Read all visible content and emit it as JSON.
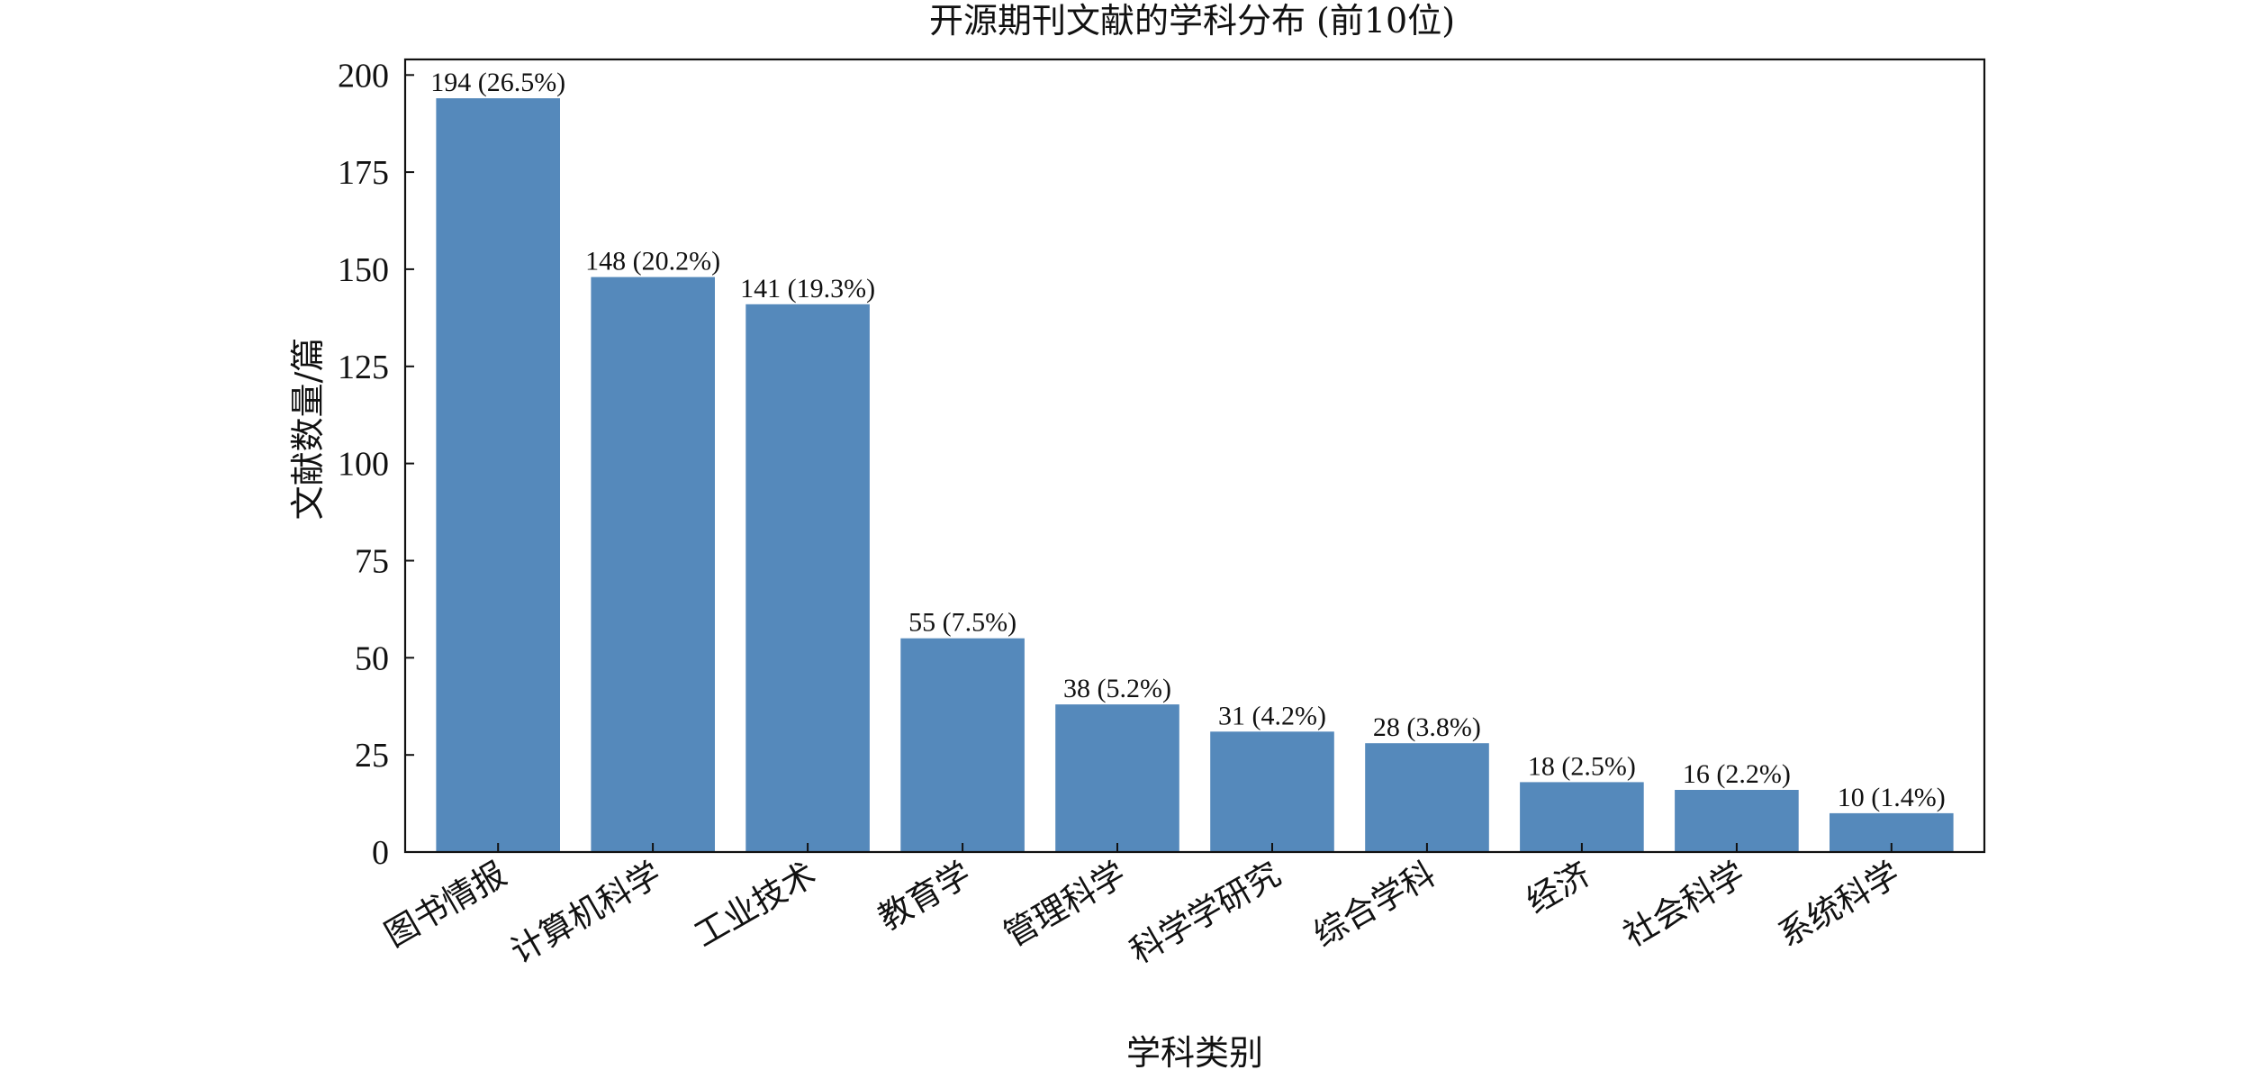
{
  "chart_data": {
    "type": "bar",
    "title": "开源期刊文献的学科分布 (前10位)",
    "xlabel": "学科类别",
    "ylabel": "文献数量/篇",
    "categories": [
      "图书情报",
      "计算机科学",
      "工业技术",
      "教育学",
      "管理科学",
      "科学学研究",
      "综合学科",
      "经济",
      "社会科学",
      "系统科学"
    ],
    "values": [
      194,
      148,
      141,
      55,
      38,
      31,
      28,
      18,
      16,
      10
    ],
    "data_labels": [
      "194 (26.5%)",
      "148 (20.2%)",
      "141 (19.3%)",
      "55 (7.5%)",
      "38 (5.2%)",
      "31 (4.2%)",
      "28 (3.8%)",
      "18 (2.5%)",
      "16 (2.2%)",
      "10 (1.4%)"
    ],
    "ylim": [
      0,
      204
    ],
    "yticks": [
      0,
      25,
      50,
      75,
      100,
      125,
      150,
      175,
      200
    ],
    "bar_color": "#5589bb",
    "grid": false,
    "legend": false
  }
}
